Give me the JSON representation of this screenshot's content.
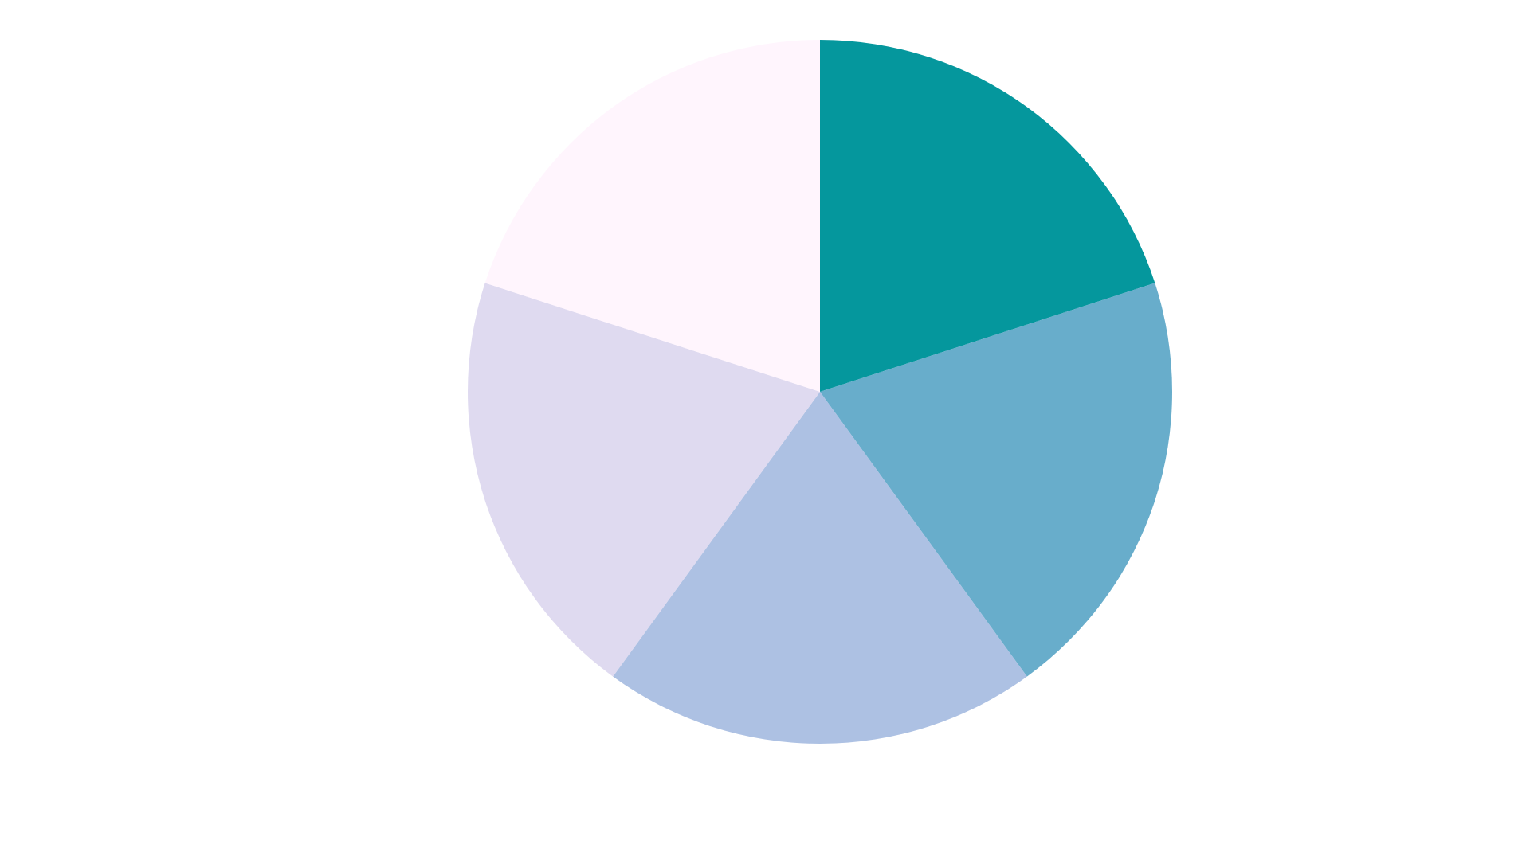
{
  "chart_data": {
    "type": "pie",
    "title": "",
    "start_angle": "12 o'clock",
    "direction": "clockwise",
    "legend": "none",
    "slices": [
      {
        "value": 20,
        "color": "#05979d"
      },
      {
        "value": 20,
        "color": "#68adcb"
      },
      {
        "value": 20,
        "color": "#adc1e3"
      },
      {
        "value": 20,
        "color": "#dfdaf0"
      },
      {
        "value": 20,
        "color": "#fff5fd"
      }
    ]
  }
}
